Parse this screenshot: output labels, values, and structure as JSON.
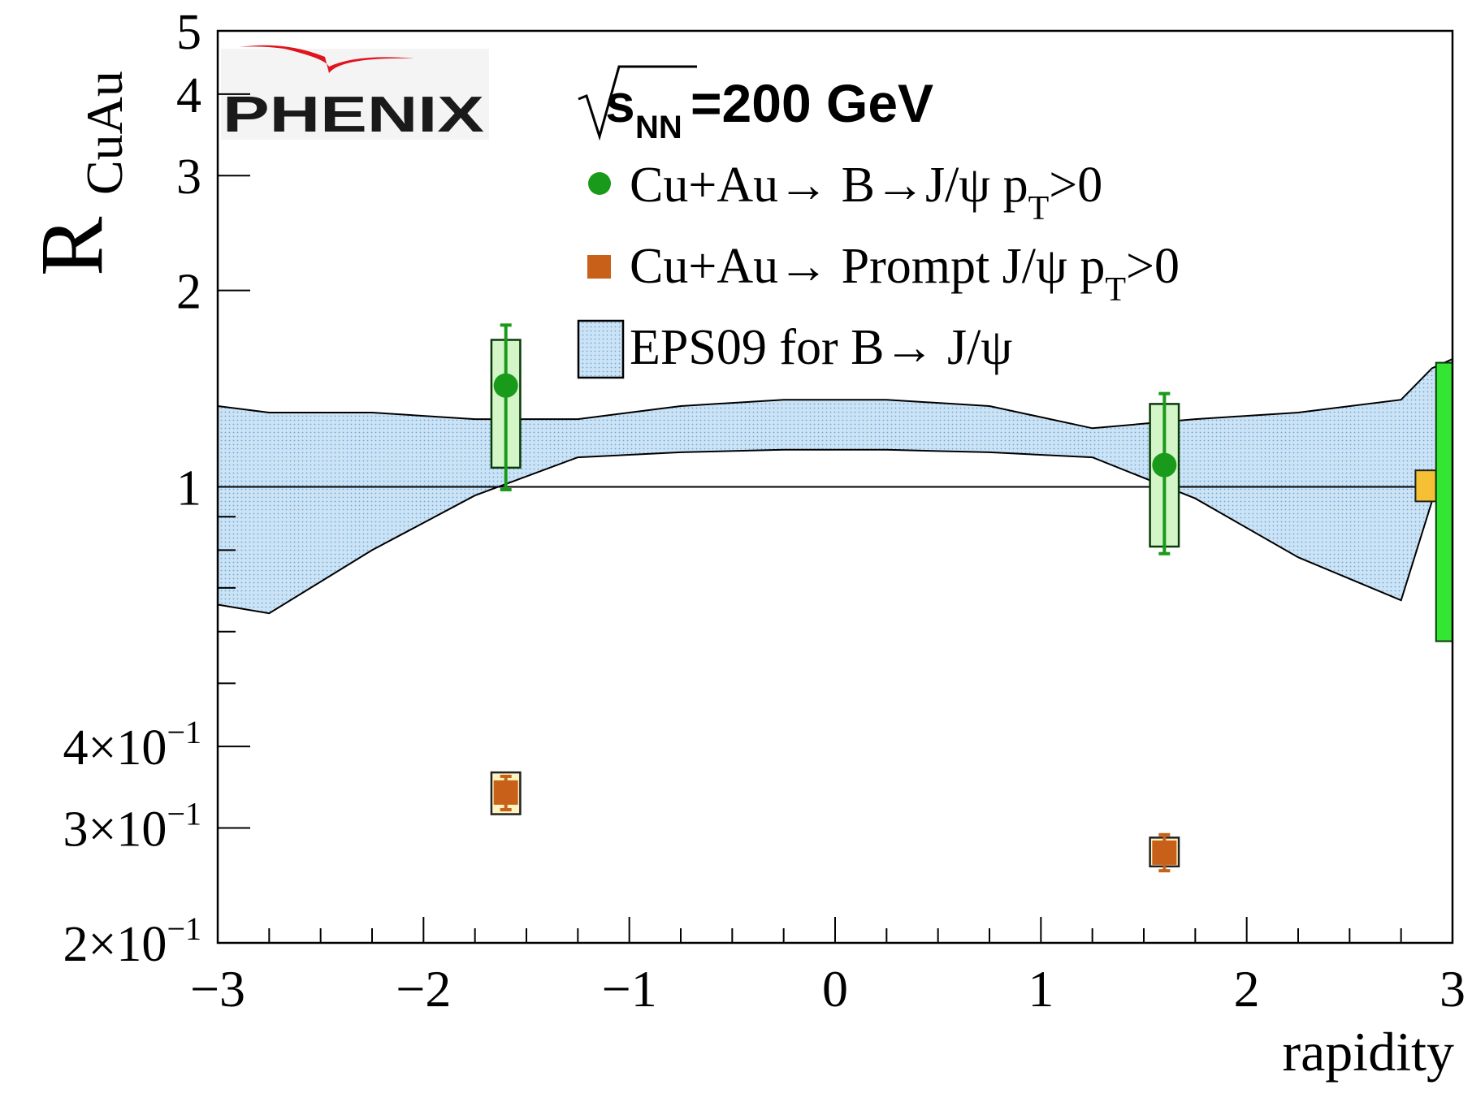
{
  "chart_data": {
    "type": "scatter",
    "title": "",
    "xlabel": "rapidity",
    "ylabel_main": "R",
    "ylabel_sub": "CuAu",
    "xlim": [
      -3,
      3
    ],
    "ylim": [
      0.2,
      5
    ],
    "yscale": "log",
    "x_ticks": [
      {
        "value": -3,
        "label": "−3"
      },
      {
        "value": -2,
        "label": "−2"
      },
      {
        "value": -1,
        "label": "−1"
      },
      {
        "value": 0,
        "label": "0"
      },
      {
        "value": 1,
        "label": "1"
      },
      {
        "value": 2,
        "label": "2"
      },
      {
        "value": 3,
        "label": "3"
      }
    ],
    "y_ticks": [
      {
        "value": 5,
        "mant": "5",
        "exp": ""
      },
      {
        "value": 4,
        "mant": "4",
        "exp": ""
      },
      {
        "value": 3,
        "mant": "3",
        "exp": ""
      },
      {
        "value": 2,
        "mant": "2",
        "exp": ""
      },
      {
        "value": 1,
        "mant": "1",
        "exp": ""
      },
      {
        "value": 0.4,
        "mant": "4×10",
        "exp": "−1"
      },
      {
        "value": 0.3,
        "mant": "3×10",
        "exp": "−1"
      },
      {
        "value": 0.2,
        "mant": "2×10",
        "exp": "−1"
      }
    ],
    "y_minor_ticks": [
      0.5,
      0.6,
      0.7,
      0.8,
      0.9
    ],
    "reference_line": 1,
    "logo": "PHENIX",
    "energy_label": {
      "sqrt": "s",
      "sub": "NN",
      "rest": "=200 GeV"
    },
    "series": [
      {
        "name": "Cu+Au→ B→J/ψ p_T>0",
        "legend_text": "Cu+Au→ B→J/ψ p",
        "legend_sub": "T",
        "legend_tail": ">0",
        "marker": "circle",
        "color": "#1a9a1a",
        "box_fill": "#d4f5c8",
        "box_stroke": "#0a3a0a",
        "points": [
          {
            "x": -1.6,
            "y": 1.43,
            "stat_lo": 0.99,
            "stat_hi": 1.77,
            "sys_lo": 1.07,
            "sys_hi": 1.68,
            "box_halfwidth": 0.07
          },
          {
            "x": 1.6,
            "y": 1.08,
            "stat_lo": 0.79,
            "stat_hi": 1.39,
            "sys_lo": 0.81,
            "sys_hi": 1.34,
            "box_halfwidth": 0.07
          }
        ]
      },
      {
        "name": "Cu+Au→ Prompt J/ψ p_T>0",
        "legend_text": "Cu+Au→ Prompt J/ψ p",
        "legend_sub": "T",
        "legend_tail": ">0",
        "marker": "square",
        "color": "#c8601a",
        "box_fill": "#fff3c0",
        "box_stroke": "#222222",
        "points": [
          {
            "x": -1.6,
            "y": 0.34,
            "stat_lo": 0.32,
            "stat_hi": 0.36,
            "sys_lo": 0.315,
            "sys_hi": 0.365,
            "box_halfwidth": 0.07
          },
          {
            "x": 1.6,
            "y": 0.275,
            "stat_lo": 0.258,
            "stat_hi": 0.293,
            "sys_lo": 0.262,
            "sys_hi": 0.29,
            "box_halfwidth": 0.07
          }
        ]
      }
    ],
    "band": {
      "name": "EPS09 for B→ J/ψ",
      "fill": "#cce3f5",
      "dot": "#6aa8d8",
      "x": [
        -3.0,
        -2.75,
        -2.25,
        -1.75,
        -1.25,
        -0.75,
        -0.25,
        0.25,
        0.75,
        1.25,
        1.75,
        2.25,
        2.75,
        2.9,
        3.0
      ],
      "upper": [
        1.33,
        1.3,
        1.3,
        1.27,
        1.27,
        1.33,
        1.36,
        1.36,
        1.33,
        1.23,
        1.27,
        1.3,
        1.36,
        1.52,
        1.57
      ],
      "lower": [
        0.66,
        0.64,
        0.8,
        0.97,
        1.11,
        1.13,
        1.14,
        1.14,
        1.13,
        1.11,
        0.96,
        0.78,
        0.67,
        0.95,
        1.0
      ]
    },
    "edge_boxes": [
      {
        "label": "global-uncertainty-prompt",
        "x_from": 2.82,
        "x_to": 2.92,
        "y_lo": 0.95,
        "y_hi": 1.06,
        "fill": "#f5c034",
        "stroke": "#222222"
      },
      {
        "label": "global-uncertainty-bjpsi",
        "x_from": 2.92,
        "x_to": 3.0,
        "y_lo": 0.58,
        "y_hi": 1.55,
        "fill": "#33e633",
        "stroke": "#0a3a0a"
      }
    ]
  }
}
